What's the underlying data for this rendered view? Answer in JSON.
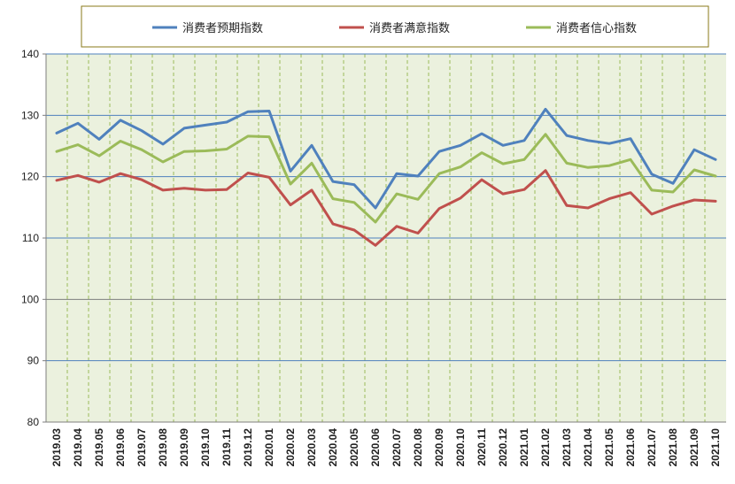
{
  "chart_data": {
    "type": "line",
    "title": "",
    "xlabel": "",
    "ylabel": "",
    "ylim": [
      80,
      140
    ],
    "yticks": [
      80,
      90,
      100,
      110,
      120,
      130,
      140
    ],
    "grid": true,
    "legend_position": "top",
    "background_color": "#ebf1de",
    "categories": [
      "2019.03",
      "2019.04",
      "2019.05",
      "2019.06",
      "2019.07",
      "2019.08",
      "2019.09",
      "2019.10",
      "2019.11",
      "2019.12",
      "2020.01",
      "2020.02",
      "2020.03",
      "2020.04",
      "2020.05",
      "2020.06",
      "2020.07",
      "2020.08",
      "2020.09",
      "2020.10",
      "2020.11",
      "2020.12",
      "2021.01",
      "2021.02",
      "2021.03",
      "2021.04",
      "2021.05",
      "2021.06",
      "2021.07",
      "2021.08",
      "2021.09",
      "2021.10"
    ],
    "series": [
      {
        "name": "消费者预期指数",
        "color": "#4f81bd",
        "values": [
          127.1,
          128.7,
          126.1,
          129.2,
          127.5,
          125.3,
          127.9,
          128.4,
          128.9,
          130.6,
          130.7,
          120.9,
          125.1,
          119.2,
          118.7,
          114.9,
          120.5,
          120.1,
          124.1,
          125.1,
          127.0,
          125.1,
          125.9,
          131.0,
          126.7,
          125.9,
          125.4,
          126.2,
          120.4,
          118.9,
          124.4,
          122.8
        ]
      },
      {
        "name": "消费者满意指数",
        "color": "#c0504d",
        "values": [
          119.4,
          120.2,
          119.1,
          120.5,
          119.5,
          117.8,
          118.1,
          117.8,
          117.9,
          120.6,
          119.9,
          115.4,
          117.8,
          112.3,
          111.3,
          108.8,
          111.9,
          110.8,
          114.8,
          116.5,
          119.5,
          117.2,
          117.9,
          121.0,
          115.3,
          114.9,
          116.4,
          117.4,
          113.9,
          115.2,
          116.2,
          116.0
        ]
      },
      {
        "name": "消费者信心指数",
        "color": "#9bbb59",
        "values": [
          124.1,
          125.2,
          123.4,
          125.8,
          124.4,
          122.4,
          124.1,
          124.2,
          124.5,
          126.6,
          126.5,
          118.8,
          122.2,
          116.4,
          115.8,
          112.6,
          117.2,
          116.3,
          120.5,
          121.6,
          123.9,
          122.1,
          122.8,
          126.9,
          122.2,
          121.5,
          121.8,
          122.8,
          117.8,
          117.5,
          121.1,
          120.1
        ]
      }
    ]
  }
}
